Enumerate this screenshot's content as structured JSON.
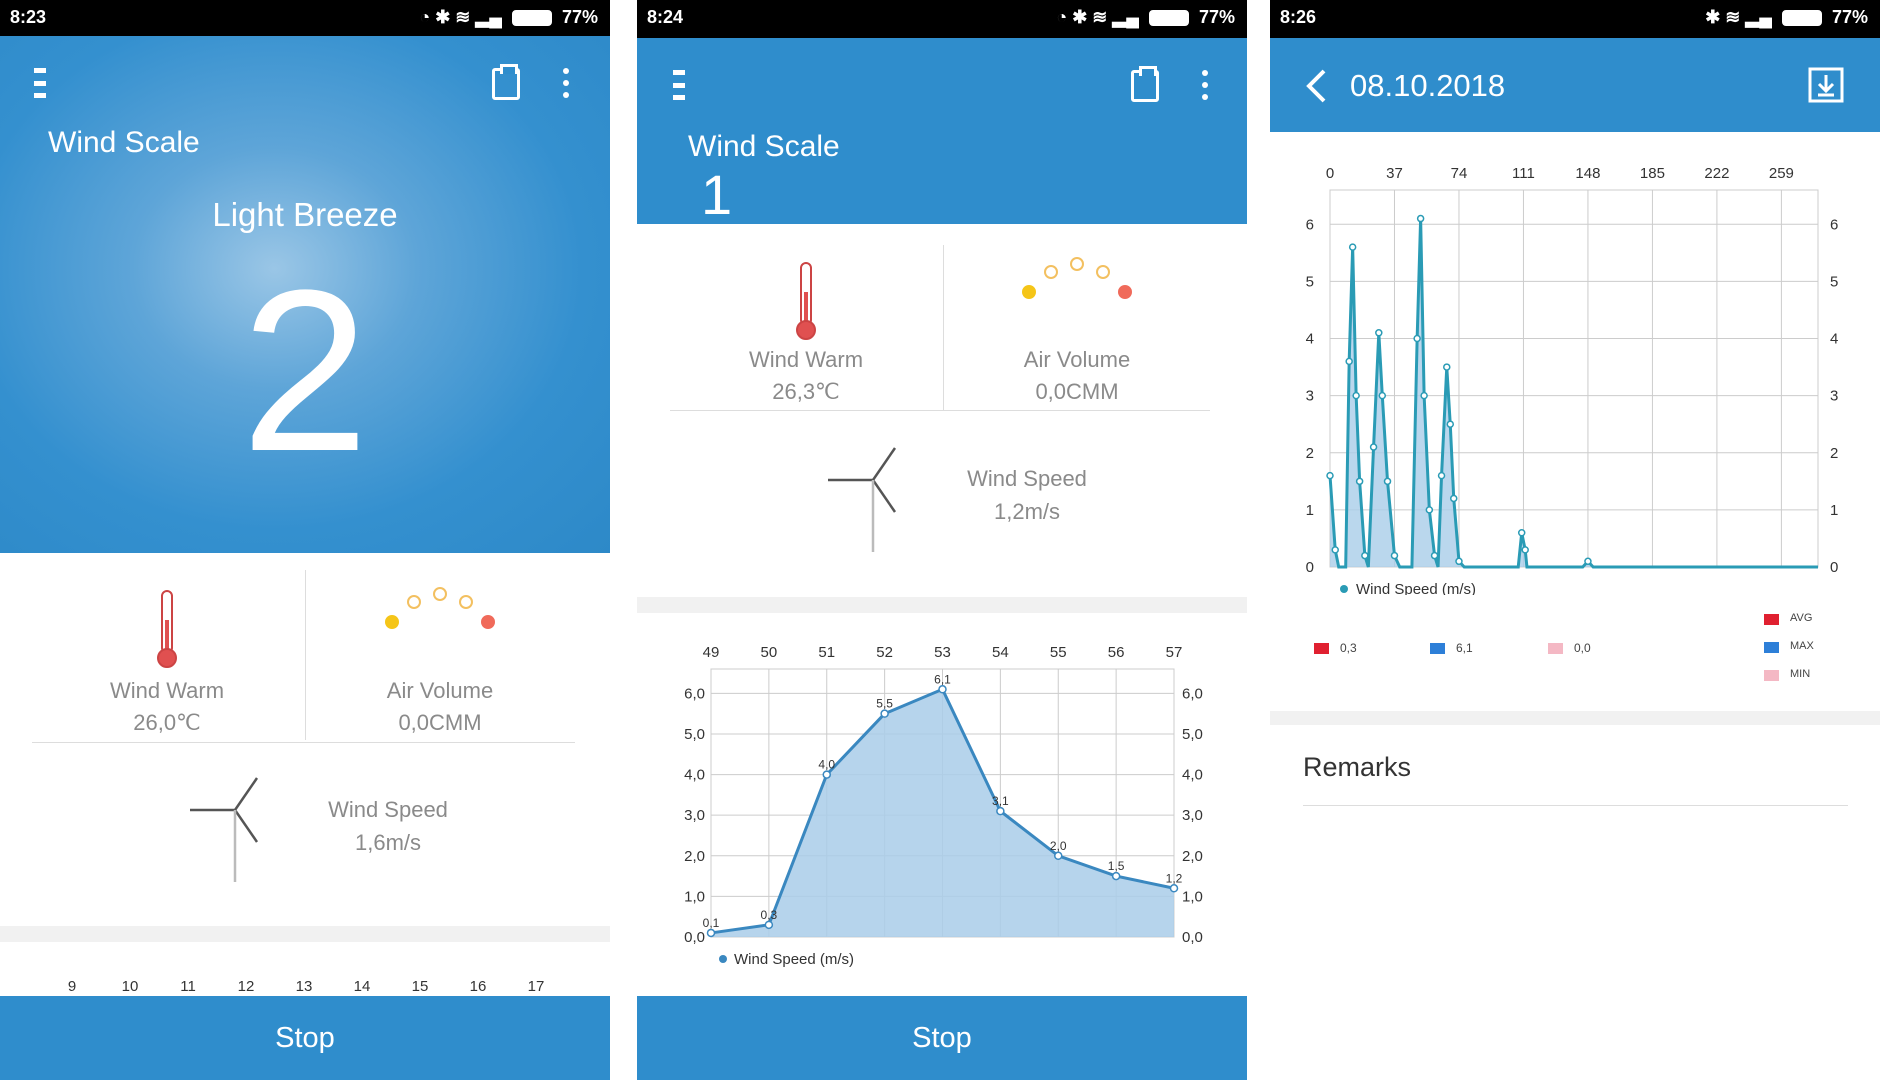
{
  "colors": {
    "primary": "#2f8dcc",
    "line": "#3a88c0",
    "area": "#a9cde9",
    "line3": "#2a9bb5",
    "avg": "#e02030",
    "max": "#2d7fd8",
    "min": "#f4b8c4"
  },
  "battery": "77%",
  "screens": [
    {
      "time": "8:23",
      "title": "Wind Scale",
      "level_name": "Light Breeze",
      "level": "2",
      "wind_warm": {
        "label": "Wind Warm",
        "value": "26,0℃"
      },
      "air_volume": {
        "label": "Air Volume",
        "value": "0,0CMM"
      },
      "wind_speed": {
        "label": "Wind Speed",
        "value": "1,6m/s"
      },
      "chart_ticks": [
        "9",
        "10",
        "11",
        "12",
        "13",
        "14",
        "15",
        "16",
        "17"
      ],
      "stop": "Stop"
    },
    {
      "time": "8:24",
      "title": "Wind Scale",
      "level": "1",
      "wind_warm": {
        "label": "Wind Warm",
        "value": "26,3℃"
      },
      "air_volume": {
        "label": "Air Volume",
        "value": "0,0CMM"
      },
      "wind_speed": {
        "label": "Wind Speed",
        "value": "1,2m/s"
      },
      "stop": "Stop"
    },
    {
      "time": "8:26",
      "date": "08.10.2018",
      "stats": [
        {
          "value": "0,3",
          "key": "avg"
        },
        {
          "value": "6,1",
          "key": "max"
        },
        {
          "value": "0,0",
          "key": "min"
        }
      ],
      "stat_legend": [
        "AVG",
        "MAX",
        "MIN"
      ],
      "remarks": "Remarks"
    }
  ],
  "chart_data": [
    {
      "type": "area",
      "x": [
        49,
        50,
        51,
        52,
        53,
        54,
        55,
        56,
        57
      ],
      "values": [
        0.1,
        0.3,
        4.0,
        5.5,
        6.1,
        3.1,
        2.0,
        1.5,
        1.2
      ],
      "data_labels": [
        "0,1",
        "0,3",
        "4,0",
        "5,5",
        "6,1",
        "3,1",
        "2,0",
        "1,5",
        "1,2"
      ],
      "x_ticks": [
        "49",
        "50",
        "51",
        "52",
        "53",
        "54",
        "55",
        "56",
        "57"
      ],
      "y_ticks": [
        "0,0",
        "1,0",
        "2,0",
        "3,0",
        "4,0",
        "5,0",
        "6,0"
      ],
      "ylim": [
        0,
        6.6
      ],
      "series_name": "Wind Speed (m/s)",
      "legend": "bottom-left",
      "grid": true
    },
    {
      "type": "area",
      "points": [
        [
          0,
          1.6
        ],
        [
          3,
          0.3
        ],
        [
          5,
          0
        ],
        [
          9,
          0
        ],
        [
          11,
          3.6
        ],
        [
          13,
          5.6
        ],
        [
          15,
          3
        ],
        [
          17,
          1.5
        ],
        [
          20,
          0.2
        ],
        [
          22,
          0
        ],
        [
          25,
          2.1
        ],
        [
          28,
          4.1
        ],
        [
          30,
          3
        ],
        [
          33,
          1.5
        ],
        [
          37,
          0.2
        ],
        [
          40,
          0
        ],
        [
          47,
          0
        ],
        [
          50,
          4
        ],
        [
          52,
          6.1
        ],
        [
          54,
          3
        ],
        [
          57,
          1
        ],
        [
          60,
          0.2
        ],
        [
          62,
          0
        ],
        [
          64,
          1.6
        ],
        [
          67,
          3.5
        ],
        [
          69,
          2.5
        ],
        [
          71,
          1.2
        ],
        [
          74,
          0.1
        ],
        [
          77,
          0
        ],
        [
          108,
          0
        ],
        [
          110,
          0.6
        ],
        [
          112,
          0.3
        ],
        [
          113,
          0
        ],
        [
          145,
          0
        ],
        [
          148,
          0.1
        ],
        [
          151,
          0
        ],
        [
          280,
          0
        ]
      ],
      "x_ticks": [
        "0",
        "37",
        "74",
        "111",
        "148",
        "185",
        "222",
        "259"
      ],
      "y_ticks": [
        "0",
        "1",
        "2",
        "3",
        "4",
        "5",
        "6"
      ],
      "xlim": [
        0,
        280
      ],
      "ylim": [
        0,
        6.6
      ],
      "series_name": "Wind Speed (m/s)",
      "legend": "bottom-left",
      "grid": true
    }
  ]
}
